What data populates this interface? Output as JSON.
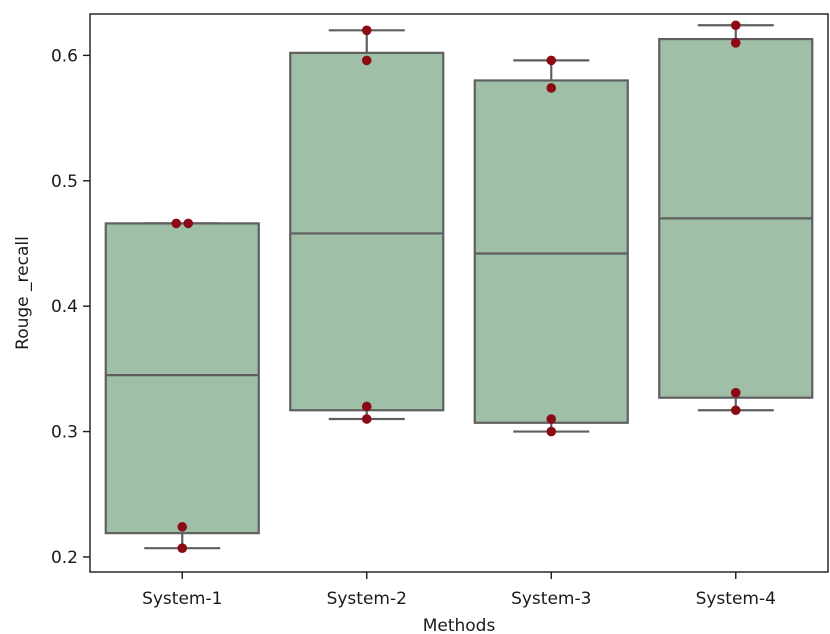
{
  "chart_data": {
    "type": "box",
    "title": "",
    "xlabel": "Methods",
    "ylabel": "Rouge _recall",
    "categories": [
      "System-1",
      "System-2",
      "System-3",
      "System-4"
    ],
    "ylim": [
      0.188,
      0.633
    ],
    "yticks": [
      0.2,
      0.3,
      0.4,
      0.5,
      0.6
    ],
    "ytick_labels": [
      "0.2",
      "0.3",
      "0.4",
      "0.5",
      "0.6"
    ],
    "grid": false,
    "boxes": [
      {
        "category": "System-1",
        "whisker_low": 0.207,
        "q1": 0.219,
        "median": 0.345,
        "q3": 0.466,
        "whisker_high": 0.466
      },
      {
        "category": "System-2",
        "whisker_low": 0.31,
        "q1": 0.317,
        "median": 0.458,
        "q3": 0.602,
        "whisker_high": 0.62
      },
      {
        "category": "System-3",
        "whisker_low": 0.3,
        "q1": 0.307,
        "median": 0.442,
        "q3": 0.58,
        "whisker_high": 0.596
      },
      {
        "category": "System-4",
        "whisker_low": 0.317,
        "q1": 0.327,
        "median": 0.47,
        "q3": 0.613,
        "whisker_high": 0.624
      }
    ],
    "points": [
      {
        "category": "System-1",
        "values": [
          0.466,
          0.466,
          0.224,
          0.207
        ]
      },
      {
        "category": "System-2",
        "values": [
          0.62,
          0.596,
          0.32,
          0.31
        ]
      },
      {
        "category": "System-3",
        "values": [
          0.596,
          0.574,
          0.31,
          0.3
        ]
      },
      {
        "category": "System-4",
        "values": [
          0.624,
          0.61,
          0.331,
          0.317
        ]
      }
    ],
    "colors": {
      "box_fill": "#9fbfa7",
      "box_edge": "#5f5f5f",
      "point": "#8b0a14",
      "axis": "#1a1a1a"
    }
  }
}
